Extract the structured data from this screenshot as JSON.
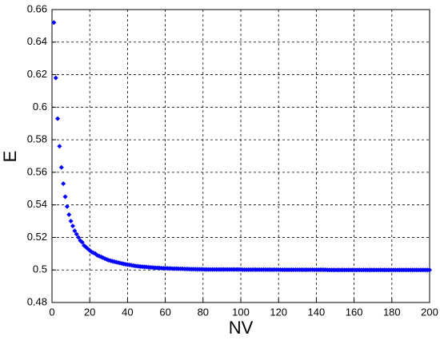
{
  "chart_data": {
    "type": "scatter",
    "x_label": "NV",
    "y_label": "E",
    "x": [
      1,
      2,
      3,
      4,
      5,
      6,
      7,
      8,
      9,
      10,
      11,
      12,
      13,
      14,
      15,
      16,
      17,
      18,
      19,
      20,
      21,
      22,
      23,
      24,
      25,
      26,
      27,
      28,
      29,
      30,
      31,
      32,
      33,
      34,
      35,
      36,
      37,
      38,
      39,
      40,
      41,
      42,
      43,
      44,
      45,
      46,
      47,
      48,
      49,
      50,
      51,
      52,
      53,
      54,
      55,
      56,
      57,
      58,
      59,
      60,
      61,
      62,
      63,
      64,
      65,
      66,
      67,
      68,
      69,
      70,
      71,
      72,
      73,
      74,
      75,
      76,
      77,
      78,
      79,
      80,
      81,
      82,
      83,
      84,
      85,
      86,
      87,
      88,
      89,
      90,
      91,
      92,
      93,
      94,
      95,
      96,
      97,
      98,
      99,
      100,
      101,
      102,
      103,
      104,
      105,
      106,
      107,
      108,
      109,
      110,
      111,
      112,
      113,
      114,
      115,
      116,
      117,
      118,
      119,
      120,
      121,
      122,
      123,
      124,
      125,
      126,
      127,
      128,
      129,
      130,
      131,
      132,
      133,
      134,
      135,
      136,
      137,
      138,
      139,
      140,
      141,
      142,
      143,
      144,
      145,
      146,
      147,
      148,
      149,
      150,
      151,
      152,
      153,
      154,
      155,
      156,
      157,
      158,
      159,
      160,
      161,
      162,
      163,
      164,
      165,
      166,
      167,
      168,
      169,
      170,
      171,
      172,
      173,
      174,
      175,
      176,
      177,
      178,
      179,
      180,
      181,
      182,
      183,
      184,
      185,
      186,
      187,
      188,
      189,
      190,
      191,
      192,
      193,
      194,
      195,
      196,
      197,
      198,
      199,
      200
    ],
    "values": [
      0.652,
      0.618,
      0.593,
      0.576,
      0.563,
      0.553,
      0.545,
      0.539,
      0.534,
      0.53,
      0.527,
      0.524,
      0.522,
      0.52,
      0.518,
      0.517,
      0.515,
      0.514,
      0.513,
      0.512,
      0.511,
      0.5105,
      0.51,
      0.509,
      0.5085,
      0.508,
      0.5075,
      0.507,
      0.5065,
      0.506,
      0.5057,
      0.5054,
      0.5051,
      0.5048,
      0.5045,
      0.5042,
      0.504,
      0.5037,
      0.5035,
      0.5033,
      0.5031,
      0.5029,
      0.5027,
      0.5025,
      0.5024,
      0.5022,
      0.5021,
      0.502,
      0.5019,
      0.5018,
      0.5017,
      0.5016,
      0.5015,
      0.5014,
      0.5013,
      0.5013,
      0.5012,
      0.5011,
      0.5011,
      0.501,
      0.501,
      0.5009,
      0.5009,
      0.5008,
      0.5008,
      0.5008,
      0.5007,
      0.5007,
      0.5007,
      0.5006,
      0.5006,
      0.5006,
      0.5005,
      0.5005,
      0.5005,
      0.5005,
      0.5004,
      0.5004,
      0.5004,
      0.5004,
      0.5003,
      0.5003,
      0.5003,
      0.5003,
      0.5003,
      0.5003,
      0.5003,
      0.5003,
      0.5003,
      0.5003,
      0.5003,
      0.5003,
      0.5003,
      0.5003,
      0.5003,
      0.5003,
      0.5003,
      0.5003,
      0.5003,
      0.5003,
      0.5002,
      0.5002,
      0.5002,
      0.5002,
      0.5002,
      0.5002,
      0.5002,
      0.5002,
      0.5002,
      0.5002,
      0.5002,
      0.5002,
      0.5002,
      0.5002,
      0.5002,
      0.5002,
      0.5002,
      0.5002,
      0.5002,
      0.5002,
      0.5001,
      0.5001,
      0.5001,
      0.5001,
      0.5001,
      0.5001,
      0.5001,
      0.5001,
      0.5001,
      0.5001,
      0.5001,
      0.5001,
      0.5001,
      0.5001,
      0.5001,
      0.5001,
      0.5001,
      0.5001,
      0.5001,
      0.5001,
      0.5001,
      0.5001,
      0.5001,
      0.5001,
      0.5001,
      0.5,
      0.5,
      0.5,
      0.5,
      0.5,
      0.5,
      0.5,
      0.5,
      0.5,
      0.5,
      0.5,
      0.5,
      0.5,
      0.5,
      0.5,
      0.5,
      0.5,
      0.5,
      0.5,
      0.5,
      0.5,
      0.5,
      0.5,
      0.5,
      0.5,
      0.5,
      0.5,
      0.5,
      0.5,
      0.5,
      0.5,
      0.5,
      0.5,
      0.5,
      0.5,
      0.5,
      0.5,
      0.5,
      0.5,
      0.5,
      0.5,
      0.5,
      0.5,
      0.5,
      0.5,
      0.5,
      0.5,
      0.5,
      0.5,
      0.5,
      0.5,
      0.5,
      0.5,
      0.5,
      0.5
    ],
    "color": "#0000ff",
    "marker": "diamond",
    "xlim": [
      0,
      200
    ],
    "xticks": [
      0,
      20,
      40,
      60,
      80,
      100,
      120,
      140,
      160,
      180,
      200
    ],
    "ylim": [
      0.48,
      0.66
    ],
    "yticks": [
      0.48,
      0.5,
      0.52,
      0.54,
      0.56,
      0.58,
      0.6,
      0.62,
      0.64,
      0.66
    ],
    "grid": true
  }
}
